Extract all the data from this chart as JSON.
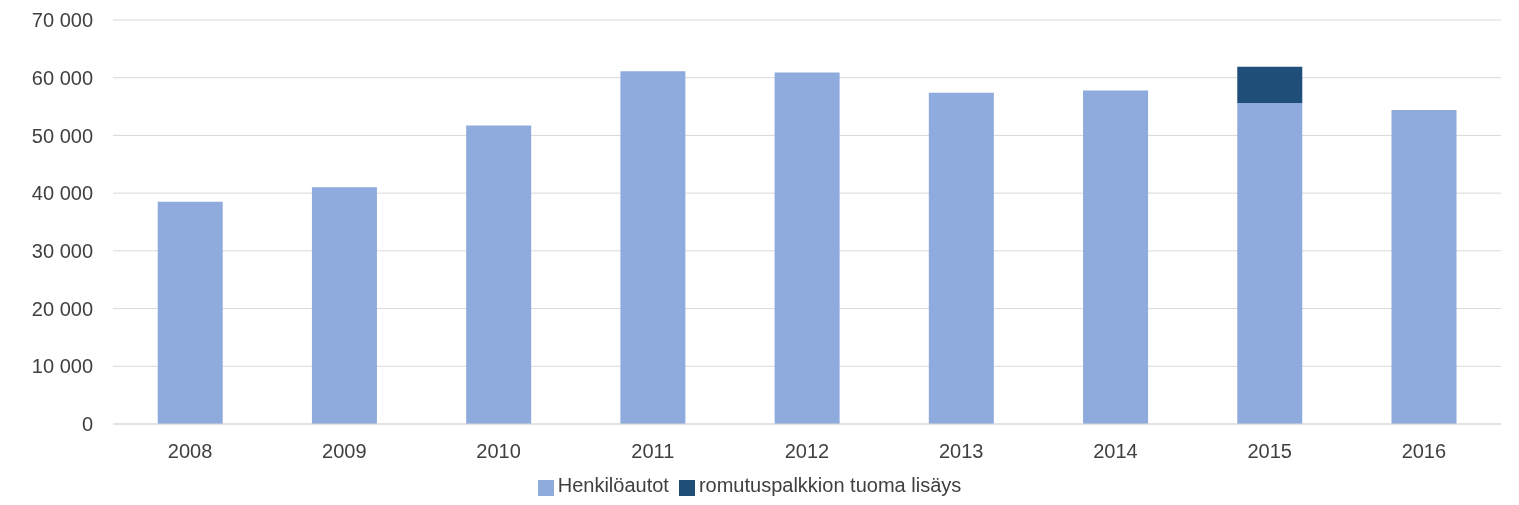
{
  "chart_data": {
    "type": "bar",
    "stacked": true,
    "categories": [
      "2008",
      "2009",
      "2010",
      "2011",
      "2012",
      "2013",
      "2014",
      "2015",
      "2016"
    ],
    "series": [
      {
        "name": "Henkilöautot",
        "color": "#8faadc",
        "values": [
          38500,
          41000,
          51700,
          61100,
          60900,
          57400,
          57800,
          55600,
          54400
        ]
      },
      {
        "name": "romutuspalkkion tuoma lisäys",
        "color": "#1f4e79",
        "values": [
          null,
          null,
          null,
          null,
          null,
          null,
          null,
          6300,
          null
        ]
      }
    ],
    "ylim": [
      0,
      70000
    ],
    "yticks": [
      {
        "value": 0,
        "label": "0"
      },
      {
        "value": 10000,
        "label": "10 000"
      },
      {
        "value": 20000,
        "label": "20 000"
      },
      {
        "value": 30000,
        "label": "30 000"
      },
      {
        "value": 40000,
        "label": "40 000"
      },
      {
        "value": 50000,
        "label": "50 000"
      },
      {
        "value": 60000,
        "label": "60 000"
      },
      {
        "value": 70000,
        "label": "70 000"
      }
    ],
    "grid": "y",
    "legend": "bottom"
  }
}
